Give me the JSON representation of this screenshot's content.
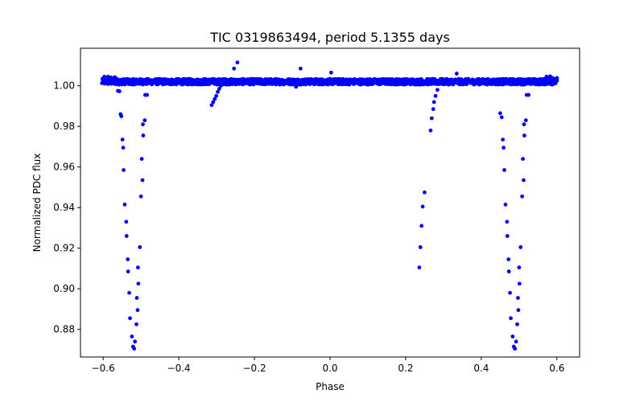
{
  "chart_data": {
    "type": "scatter",
    "title": "TIC 0319863494, period 5.1355 days",
    "xlabel": "Phase",
    "ylabel": "Normalized PDC flux",
    "xlim": [
      -0.66,
      0.66
    ],
    "ylim": [
      0.8664,
      1.0185
    ],
    "xticks": [
      -0.6,
      -0.4,
      -0.2,
      0.0,
      0.2,
      0.4,
      0.6
    ],
    "xtick_labels": [
      "−0.6",
      "−0.4",
      "−0.2",
      "0.0",
      "0.2",
      "0.4",
      "0.6"
    ],
    "yticks": [
      0.88,
      0.9,
      0.92,
      0.94,
      0.96,
      0.98,
      1.0
    ],
    "ytick_labels": [
      "0.88",
      "0.90",
      "0.92",
      "0.94",
      "0.96",
      "0.98",
      "1.00"
    ],
    "grid": false,
    "series": [
      {
        "name": "PDC flux",
        "color": "#0000ff",
        "baseline": 1.002,
        "baseline_x_range": [
          -0.6,
          0.6
        ],
        "points": [
          [
            -0.561,
            0.9975
          ],
          [
            -0.557,
            0.9973
          ],
          [
            -0.554,
            0.986
          ],
          [
            -0.552,
            0.985
          ],
          [
            -0.549,
            0.9735
          ],
          [
            -0.547,
            0.9695
          ],
          [
            -0.546,
            0.9585
          ],
          [
            -0.543,
            0.9415
          ],
          [
            -0.539,
            0.933
          ],
          [
            -0.538,
            0.926
          ],
          [
            -0.535,
            0.9145
          ],
          [
            -0.534,
            0.9085
          ],
          [
            -0.531,
            0.898
          ],
          [
            -0.529,
            0.8855
          ],
          [
            -0.524,
            0.8765
          ],
          [
            -0.521,
            0.8715
          ],
          [
            -0.518,
            0.8705
          ],
          [
            -0.516,
            0.874
          ],
          [
            -0.512,
            0.8825
          ],
          [
            -0.509,
            0.8895
          ],
          [
            -0.511,
            0.8955
          ],
          [
            -0.507,
            0.9025
          ],
          [
            -0.508,
            0.9105
          ],
          [
            -0.503,
            0.9205
          ],
          [
            -0.5,
            0.9455
          ],
          [
            -0.496,
            0.9535
          ],
          [
            -0.498,
            0.964
          ],
          [
            -0.494,
            0.9755
          ],
          [
            -0.495,
            0.981
          ],
          [
            -0.49,
            0.983
          ],
          [
            -0.489,
            0.9955
          ],
          [
            -0.484,
            0.9955
          ],
          [
            -0.313,
            0.9905
          ],
          [
            -0.309,
            0.992
          ],
          [
            -0.305,
            0.9935
          ],
          [
            -0.301,
            0.995
          ],
          [
            -0.297,
            0.997
          ],
          [
            -0.293,
            0.9985
          ],
          [
            -0.289,
            1.0
          ],
          [
            -0.254,
            1.0085
          ],
          [
            -0.245,
            1.0115
          ],
          [
            -0.078,
            1.0085
          ],
          [
            -0.09,
            0.9995
          ],
          [
            0.003,
            1.0065
          ],
          [
            0.236,
            0.9105
          ],
          [
            0.239,
            0.9205
          ],
          [
            0.242,
            0.931
          ],
          [
            0.245,
            0.9405
          ],
          [
            0.25,
            0.9475
          ],
          [
            0.266,
            0.978
          ],
          [
            0.269,
            0.984
          ],
          [
            0.273,
            0.9885
          ],
          [
            0.275,
            0.992
          ],
          [
            0.279,
            0.995
          ],
          [
            0.284,
            0.998
          ],
          [
            0.335,
            1.006
          ],
          [
            0.45,
            0.9865
          ],
          [
            0.454,
            0.9845
          ],
          [
            0.457,
            0.9735
          ],
          [
            0.459,
            0.9695
          ],
          [
            0.461,
            0.9585
          ],
          [
            0.464,
            0.9415
          ],
          [
            0.468,
            0.933
          ],
          [
            0.469,
            0.926
          ],
          [
            0.472,
            0.9145
          ],
          [
            0.473,
            0.9085
          ],
          [
            0.476,
            0.898
          ],
          [
            0.478,
            0.8855
          ],
          [
            0.483,
            0.8765
          ],
          [
            0.486,
            0.8715
          ],
          [
            0.489,
            0.8705
          ],
          [
            0.492,
            0.874
          ],
          [
            0.495,
            0.8825
          ],
          [
            0.498,
            0.8895
          ],
          [
            0.497,
            0.8955
          ],
          [
            0.501,
            0.9025
          ],
          [
            0.5,
            0.9105
          ],
          [
            0.504,
            0.9205
          ],
          [
            0.508,
            0.9455
          ],
          [
            0.512,
            0.9535
          ],
          [
            0.51,
            0.964
          ],
          [
            0.514,
            0.9755
          ],
          [
            0.513,
            0.981
          ],
          [
            0.518,
            0.983
          ],
          [
            0.52,
            0.9955
          ],
          [
            0.525,
            0.9955
          ]
        ]
      }
    ]
  }
}
